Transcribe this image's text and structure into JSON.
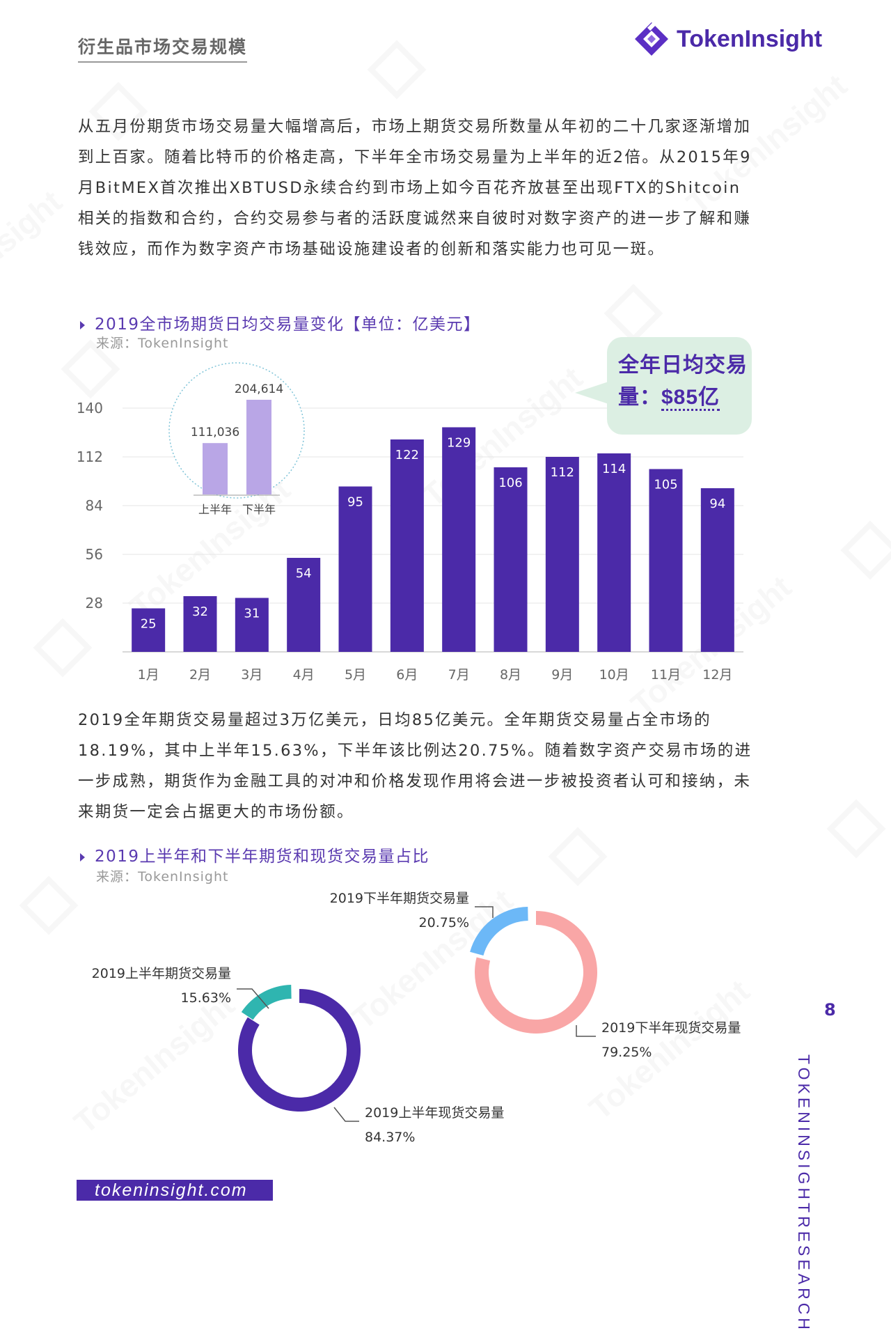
{
  "header": {
    "title": "衍生品市场交易规模",
    "brand": "TokenInsight"
  },
  "paragraph1": "从五月份期货市场交易量大幅增高后，市场上期货交易所数量从年初的二十几家逐渐增加到上百家。随着比特币的价格走高，下半年全市场交易量为上半年的近2倍。从2015年9月BitMEX首次推出XBTUSD永续合约到市场上如今百花齐放甚至出现FTX的Shitcoin相关的指数和合约，合约交易参与者的活跃度诚然来自彼时对数字资产的进一步了解和赚钱效应，而作为数字资产市场基础设施建设者的创新和落实能力也可见一斑。",
  "section1": {
    "title": "2019全市场期货日均交易量变化【单位：亿美元】",
    "source": "来源：TokenInsight"
  },
  "callout": {
    "line1": "全年日均交易",
    "line2_prefix": "量：",
    "amount": "$85亿"
  },
  "paragraph2": "2019全年期货交易量超过3万亿美元，日均85亿美元。全年期货交易量占全市场的18.19%，其中上半年15.63%，下半年该比例达20.75%。随着数字资产交易市场的进一步成熟，期货作为金融工具的对冲和价格发现作用将会进一步被投资者认可和接纳，未来期货一定会占据更大的市场份额。",
  "section2": {
    "title": "2019上半年和下半年期货和现货交易量占比",
    "source": "来源：TokenInsight"
  },
  "page_number": "8",
  "side_brand_1": "TOKENINSIGHT",
  "side_brand_2": "RESEARCH",
  "footer_url": "tokeninsight.com",
  "chart_data": [
    {
      "type": "bar",
      "title": "2019全市场期货日均交易量变化【单位：亿美元】",
      "categories": [
        "1月",
        "2月",
        "3月",
        "4月",
        "5月",
        "6月",
        "7月",
        "8月",
        "9月",
        "10月",
        "11月",
        "12月"
      ],
      "values": [
        25,
        32,
        31,
        54,
        95,
        122,
        129,
        106,
        112,
        114,
        105,
        94
      ],
      "yticks": [
        28,
        56,
        84,
        112,
        140
      ],
      "ylim": [
        0,
        140
      ],
      "grid": true,
      "color": "#4b2aa8"
    },
    {
      "type": "bar",
      "categories": [
        "上半年",
        "下半年"
      ],
      "values": [
        111036,
        204614
      ],
      "labels": [
        "111,036",
        "204,614"
      ],
      "color": "#b9a6e6"
    },
    {
      "type": "pie",
      "slices": [
        {
          "label": "2019上半年期货交易量",
          "value": 15.63,
          "text": "15.63%",
          "color": "#2fb5b0"
        },
        {
          "label": "2019上半年现货交易量",
          "value": 84.37,
          "text": "84.37%",
          "color": "#4b2aa8"
        }
      ]
    },
    {
      "type": "pie",
      "slices": [
        {
          "label": "2019下半年期货交易量",
          "value": 20.75,
          "text": "20.75%",
          "color": "#6cb8f7"
        },
        {
          "label": "2019下半年现货交易量",
          "value": 79.25,
          "text": "79.25%",
          "color": "#f9a6a6"
        }
      ]
    }
  ]
}
